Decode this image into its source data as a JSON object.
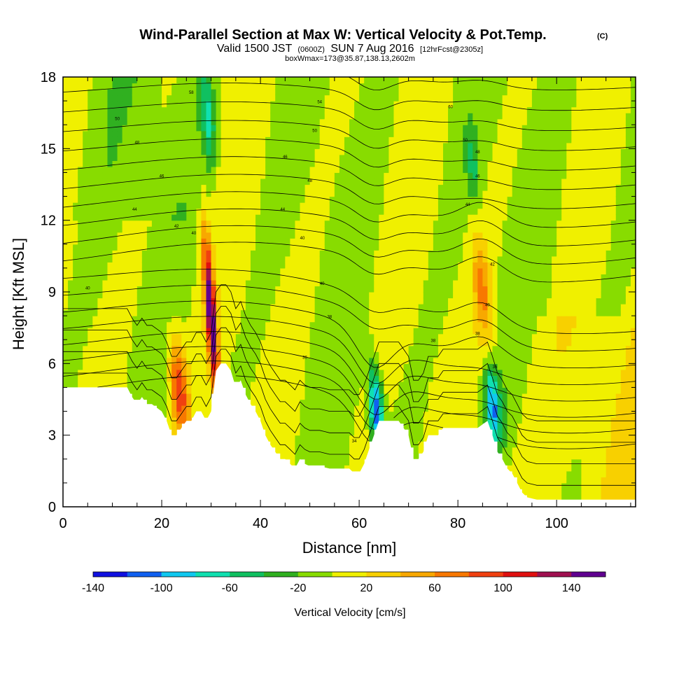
{
  "chart_data": {
    "type": "heatmap",
    "title": "Wind-Parallel Section at Max W: Vertical Velocity & Pot.Temp.",
    "title_mark": "(C)",
    "subtitle": {
      "valid_prefix": "Valid 1500 JST",
      "utc": "(0600Z)",
      "date": "SUN 7 Aug 2016",
      "forecast": "[12hrFcst@2305z]"
    },
    "subtitle2": "boxWmax=173@35.87,138.13,2602m",
    "xlabel": "Distance [nm]",
    "ylabel": "Height [Kft MSL]",
    "xlim": [
      0,
      116
    ],
    "ylim": [
      0,
      18
    ],
    "x_ticks": [
      "0",
      "20",
      "40",
      "60",
      "80",
      "100"
    ],
    "y_ticks": [
      "0",
      "3",
      "6",
      "9",
      "12",
      "15",
      "18"
    ],
    "x_tick_values": [
      0,
      20,
      40,
      60,
      80,
      100
    ],
    "y_tick_values": [
      0,
      3,
      6,
      9,
      12,
      15,
      18
    ],
    "grid": false,
    "colorbar": {
      "title": "Vertical Velocity [cm/s]",
      "min": -140,
      "max": 160,
      "step": 20,
      "tick_labels": [
        "-140",
        "-100",
        "-60",
        "-20",
        "20",
        "60",
        "100",
        "140"
      ],
      "tick_values": [
        -140,
        -100,
        -60,
        -20,
        20,
        60,
        100,
        140
      ],
      "colors": [
        "#1010e0",
        "#1060f0",
        "#10c8f0",
        "#10e0b0",
        "#10c060",
        "#30b020",
        "#88dc00",
        "#f0f000",
        "#f8d000",
        "#f8a800",
        "#f87800",
        "#f04010",
        "#e01010",
        "#a01050",
        "#600090"
      ]
    },
    "vertical_velocity_features": [
      {
        "x": 30,
        "y_range": [
          5.5,
          10.5
        ],
        "peak": 160,
        "sign": "up"
      },
      {
        "x": 23.5,
        "y_range": [
          3.5,
          6.5
        ],
        "peak": 100,
        "sign": "up"
      },
      {
        "x": 85,
        "y_range": [
          7.5,
          10.5
        ],
        "peak": 60,
        "sign": "up"
      },
      {
        "x": 63.5,
        "y_range": [
          3,
          5
        ],
        "peak": -120,
        "sign": "down"
      },
      {
        "x": 87,
        "y_range": [
          3.5,
          5
        ],
        "peak": -100,
        "sign": "down"
      },
      {
        "x": 29.5,
        "y_range": [
          15,
          17.5
        ],
        "peak": -60,
        "sign": "down"
      },
      {
        "x": 83,
        "y_range": [
          13.5,
          15
        ],
        "peak": -40,
        "sign": "down"
      }
    ],
    "terrain_height": {
      "x": [
        0,
        13,
        14,
        15,
        16,
        17,
        18,
        20,
        21,
        22,
        23,
        24,
        25,
        26,
        27,
        28,
        29,
        30,
        31,
        32,
        33,
        34,
        35,
        36,
        37,
        38,
        39,
        40,
        41,
        42,
        43,
        44,
        45,
        46,
        47,
        48,
        49,
        50,
        52,
        54,
        56,
        58,
        59,
        60,
        61,
        62,
        63,
        64,
        65,
        66,
        67,
        68,
        69,
        70,
        71,
        72,
        73,
        74,
        75,
        76,
        77,
        78,
        80,
        82,
        84,
        86,
        87,
        88,
        89,
        90,
        91,
        92,
        93,
        94,
        96,
        98,
        100,
        102,
        104,
        106,
        108,
        110,
        112,
        116
      ],
      "y": [
        5,
        5,
        4.6,
        4.3,
        4.6,
        4.3,
        4.3,
        4.0,
        3.6,
        3.0,
        3.0,
        3.3,
        3.6,
        3.6,
        4.0,
        4.0,
        3.6,
        4.0,
        5.7,
        6.0,
        6.0,
        5.7,
        5.0,
        5.3,
        4.7,
        4.3,
        4.0,
        3.6,
        3.0,
        2.6,
        2.3,
        2.0,
        2.0,
        1.8,
        1.6,
        2.0,
        1.8,
        1.7,
        1.7,
        1.6,
        1.6,
        1.6,
        1.4,
        1.4,
        1.8,
        2.4,
        3.0,
        3.6,
        3.6,
        3.6,
        3.6,
        3.6,
        3.3,
        3.0,
        2.0,
        2.0,
        2.3,
        3.0,
        3.0,
        3.0,
        3.3,
        3.3,
        3.3,
        3.3,
        3.3,
        3.6,
        3.0,
        2.3,
        2.0,
        1.6,
        1.4,
        1.0,
        0.6,
        0.4,
        0.3,
        0.3,
        0.3,
        0.3,
        0.3,
        0.3,
        0.3,
        0.3,
        0.3,
        0.3
      ]
    },
    "potential_temperature_contours": {
      "step": 2,
      "labels": [
        {
          "x": 5,
          "y": 9.1,
          "text": "40"
        },
        {
          "x": 14.5,
          "y": 12.4,
          "text": "44"
        },
        {
          "x": 15,
          "y": 15.2,
          "text": "48"
        },
        {
          "x": 20,
          "y": 13.8,
          "text": "46"
        },
        {
          "x": 23,
          "y": 11.7,
          "text": "42"
        },
        {
          "x": 26,
          "y": 17.3,
          "text": "58"
        },
        {
          "x": 26.5,
          "y": 11.4,
          "text": "40"
        },
        {
          "x": 11,
          "y": 16.2,
          "text": "50"
        },
        {
          "x": 45,
          "y": 14.6,
          "text": "46"
        },
        {
          "x": 50,
          "y": 13.6,
          "text": "48"
        },
        {
          "x": 44.5,
          "y": 12.4,
          "text": "44"
        },
        {
          "x": 48.5,
          "y": 11.2,
          "text": "40"
        },
        {
          "x": 52,
          "y": 16.9,
          "text": "54"
        },
        {
          "x": 51,
          "y": 15.7,
          "text": "50"
        },
        {
          "x": 52.5,
          "y": 9.3,
          "text": "40"
        },
        {
          "x": 54,
          "y": 7.9,
          "text": "38"
        },
        {
          "x": 49,
          "y": 6.2,
          "text": "36"
        },
        {
          "x": 59,
          "y": 2.7,
          "text": "34"
        },
        {
          "x": 78.5,
          "y": 16.7,
          "text": "60"
        },
        {
          "x": 81.5,
          "y": 15.3,
          "text": "50"
        },
        {
          "x": 84,
          "y": 14.8,
          "text": "48"
        },
        {
          "x": 84,
          "y": 13.8,
          "text": "46"
        },
        {
          "x": 82,
          "y": 12.6,
          "text": "44"
        },
        {
          "x": 87,
          "y": 10.1,
          "text": "42"
        },
        {
          "x": 86,
          "y": 8.4,
          "text": "40"
        },
        {
          "x": 84,
          "y": 7.2,
          "text": "38"
        },
        {
          "x": 75,
          "y": 6.9,
          "text": "38"
        },
        {
          "x": 87.5,
          "y": 5.8,
          "text": "36"
        }
      ]
    }
  }
}
